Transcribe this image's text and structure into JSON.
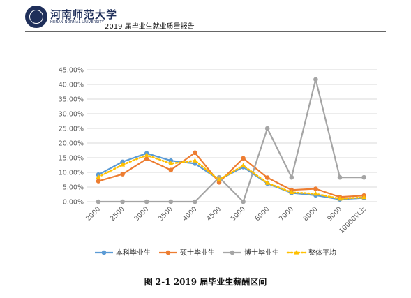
{
  "header": {
    "logo_cn": "河南师范大学",
    "logo_en": "HENAN NORMAL UNIVERSITY",
    "report_title": "2019 届毕业生就业质量报告"
  },
  "caption": "图 2-1    2019 届毕业生薪酬区间",
  "colors": {
    "bachelor": "#5b9bd5",
    "master": "#ed7d31",
    "doctor": "#a5a5a5",
    "overall": "#ffc000",
    "grid": "#d9d9d9"
  },
  "chart_data": {
    "type": "line",
    "categories": [
      "2000",
      "2500",
      "3000",
      "3500",
      "4000",
      "4500",
      "5000",
      "6000",
      "7000",
      "8000",
      "9000",
      "10000以上"
    ],
    "y_ticks": [
      "0.00%",
      "5.00%",
      "10.00%",
      "15.00%",
      "20.00%",
      "25.00%",
      "30.00%",
      "35.00%",
      "40.00%",
      "45.00%"
    ],
    "ylim": [
      0,
      45
    ],
    "y_unit": "%",
    "grid": true,
    "legend_position": "bottom",
    "series": [
      {
        "name": "本科毕业生",
        "color": "#5b9bd5",
        "style": "solid-marker-circle",
        "values": [
          9.2,
          13.6,
          16.5,
          14.0,
          13.0,
          7.5,
          11.8,
          6.2,
          3.0,
          2.2,
          0.8,
          1.3
        ]
      },
      {
        "name": "硕士毕业生",
        "color": "#ed7d31",
        "style": "solid-marker-circle",
        "values": [
          7.0,
          9.4,
          14.6,
          10.8,
          16.7,
          6.6,
          14.8,
          8.2,
          4.0,
          4.4,
          1.6,
          2.1
        ]
      },
      {
        "name": "博士毕业生",
        "color": "#a5a5a5",
        "style": "solid-marker-circle",
        "values": [
          0,
          0,
          0,
          0,
          0,
          8.3,
          0,
          25.0,
          8.3,
          41.7,
          8.3,
          8.3
        ]
      },
      {
        "name": "整体平均",
        "color": "#ffc000",
        "style": "dotted-marker-triangle",
        "values": [
          8.4,
          12.6,
          15.9,
          13.0,
          14.0,
          7.5,
          12.3,
          6.4,
          3.2,
          2.7,
          1.0,
          1.5
        ]
      }
    ]
  }
}
